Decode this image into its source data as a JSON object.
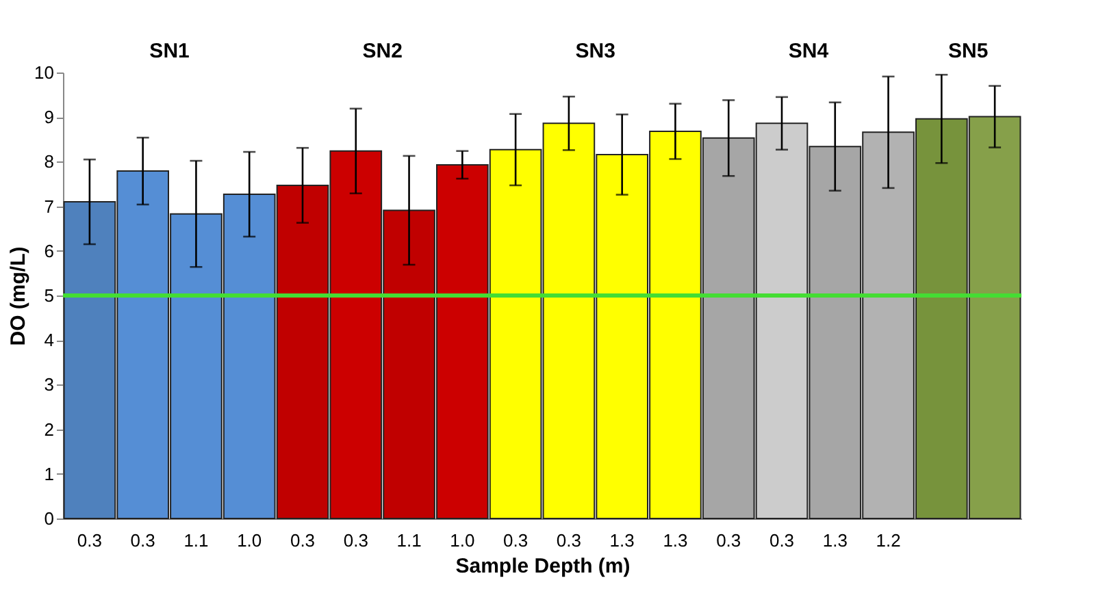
{
  "chart_data": {
    "type": "bar",
    "xlabel": "Sample Depth (m)",
    "ylabel": "DO (mg/L)",
    "categories": [
      "0.3",
      "0.3",
      "1.1",
      "1.0",
      "0.3",
      "0.3",
      "1.1",
      "1.0",
      "0.3",
      "0.3",
      "1.3",
      "1.3",
      "0.3",
      "0.3",
      "1.3",
      "1.2",
      null,
      null
    ],
    "values": [
      7.1,
      7.79,
      6.83,
      7.27,
      7.47,
      8.24,
      6.91,
      7.93,
      8.27,
      8.86,
      8.16,
      8.68,
      8.53,
      8.86,
      8.34,
      8.66,
      8.96,
      9.01
    ],
    "errors": [
      0.95,
      0.75,
      1.19,
      0.95,
      0.84,
      0.95,
      1.22,
      0.31,
      0.8,
      0.6,
      0.9,
      0.62,
      0.85,
      0.59,
      0.99,
      1.25,
      0.99,
      0.69
    ],
    "colors": [
      "#4f81bd",
      "#558ed5",
      "#558ed5",
      "#558ed5",
      "#c00000",
      "#cc0000",
      "#c00000",
      "#cc0000",
      "#ffff00",
      "#ffff00",
      "#ffff00",
      "#ffff00",
      "#a6a6a6",
      "#cccccc",
      "#a6a6a6",
      "#b2b2b2",
      "#77933c",
      "#86a04a"
    ],
    "ylim": [
      0,
      10
    ],
    "yticks": [
      0,
      1,
      2,
      3,
      4,
      5,
      6,
      7,
      8,
      9,
      10
    ],
    "grid": false,
    "ref_lines": [
      {
        "axis": "y",
        "value": 5,
        "color": "#44dd33"
      }
    ],
    "annotations": [
      "SN1",
      "SN2",
      "SN3",
      "SN4",
      "SN5"
    ]
  }
}
